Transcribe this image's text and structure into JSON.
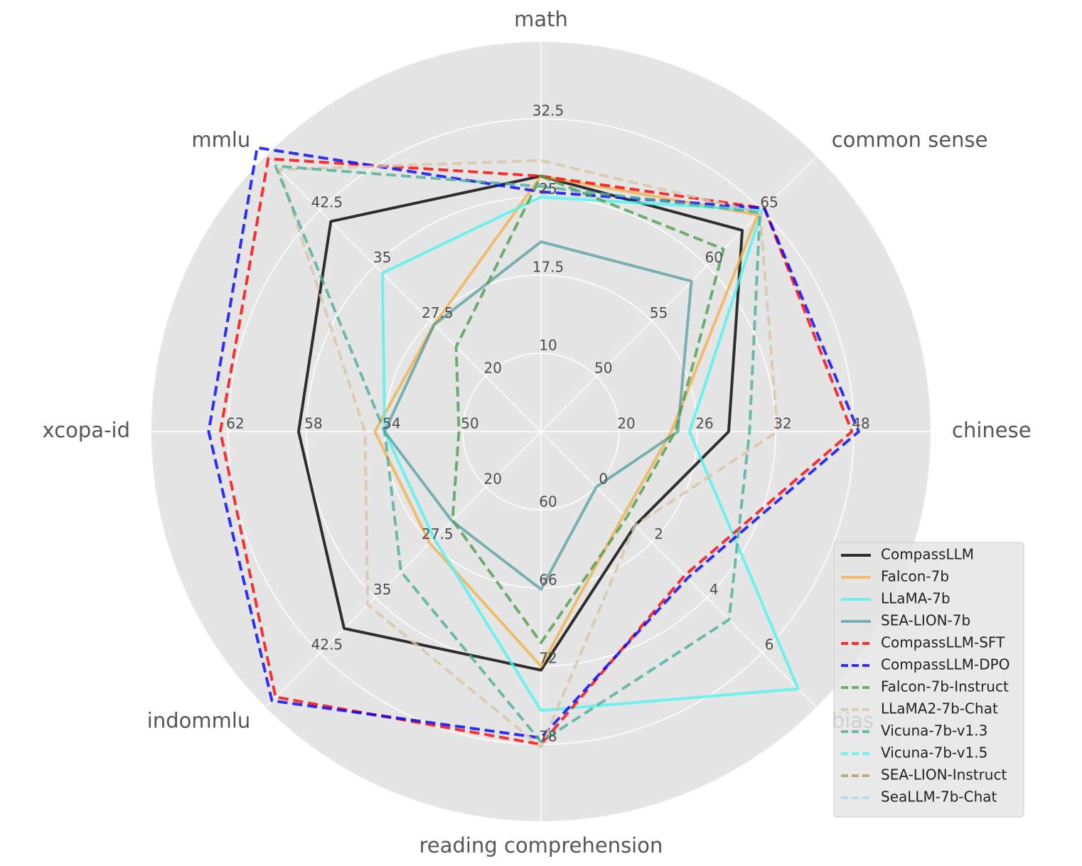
{
  "chart_data": {
    "type": "radar",
    "axes": [
      {
        "name": "math",
        "ticks": [
          "10",
          "17.5",
          "25",
          "32.5"
        ]
      },
      {
        "name": "common sense",
        "ticks": [
          "50",
          "55",
          "60",
          "65"
        ]
      },
      {
        "name": "chinese",
        "ticks": [
          "20",
          "26",
          "32",
          "48"
        ]
      },
      {
        "name": "bias",
        "ticks": [
          "0",
          "2",
          "4",
          "6"
        ]
      },
      {
        "name": "reading comprehension",
        "ticks": [
          "60",
          "66",
          "72",
          "78"
        ]
      },
      {
        "name": "indommlu",
        "ticks": [
          "20",
          "27.5",
          "35",
          "42.5"
        ]
      },
      {
        "name": "xcopa-id",
        "ticks": [
          "50",
          "54",
          "58",
          "62"
        ]
      },
      {
        "name": "mmlu",
        "ticks": [
          "20",
          "27.5",
          "35",
          "42.5"
        ]
      }
    ],
    "series": [
      {
        "name": "CompassLLM",
        "color": "#000000",
        "dash": false,
        "opacity": 0.8,
        "values": [
          27.0,
          63.2,
          28.4,
          1.4,
          72.3,
          39.2,
          58.4,
          41.0
        ]
      },
      {
        "name": "Falcon-7b",
        "color": "#f0b24f",
        "dash": false,
        "opacity": 0.8,
        "values": [
          27.0,
          64.6,
          24.0,
          1.0,
          72.0,
          27.6,
          54.5,
          27.0
        ]
      },
      {
        "name": "LLaMA-7b",
        "color": "#4ef4f0",
        "dash": false,
        "opacity": 0.8,
        "values": [
          25.0,
          65.0,
          25.4,
          7.3,
          75.4,
          27.0,
          54.0,
          34.0
        ]
      },
      {
        "name": "SEA-LION-7b",
        "color": "#2e8b8e",
        "dash": false,
        "opacity": 0.6,
        "values": [
          20.7,
          58.6,
          24.5,
          0.0,
          66.1,
          24.6,
          54.0,
          27.0
        ]
      },
      {
        "name": "CompassLLM-SFT",
        "color": "#ff0000",
        "dash": true,
        "opacity": 0.8,
        "values": [
          27.0,
          65.2,
          47.6,
          3.2,
          78.0,
          48.5,
          62.4,
          49.5
        ]
      },
      {
        "name": "CompassLLM-DPO",
        "color": "#0000ff",
        "dash": true,
        "opacity": 0.8,
        "values": [
          25.5,
          65.2,
          49.0,
          3.3,
          77.5,
          49.0,
          63.0,
          51.0
        ]
      },
      {
        "name": "Falcon-7b-Instruct",
        "color": "#4d9e4d",
        "dash": true,
        "opacity": 0.8,
        "values": [
          27.0,
          61.5,
          24.3,
          1.1,
          70.2,
          24.5,
          50.2,
          24.0
        ]
      },
      {
        "name": "LLaMA2-7b-Chat",
        "color": "#d9c4a6",
        "dash": true,
        "opacity": 0.8,
        "values": [
          28.5,
          64.8,
          32.4,
          1.4,
          78.2,
          36.0,
          55.0,
          48.0
        ]
      },
      {
        "name": "Vicuna-7b-v1.3",
        "color": "#4cae9a",
        "dash": true,
        "opacity": 0.8,
        "values": [
          26.0,
          64.8,
          30.0,
          4.8,
          77.8,
          31.5,
          54.0,
          48.5
        ]
      },
      {
        "name": "Vicuna-7b-v1.5",
        "color": "#4ef4f0",
        "dash": true,
        "opacity": 0.8,
        "values": [
          null,
          null,
          null,
          null,
          null,
          null,
          null,
          null
        ]
      },
      {
        "name": "SEA-LION-Instruct",
        "color": "#a8a35c",
        "dash": true,
        "opacity": 0.8,
        "values": [
          null,
          null,
          null,
          null,
          null,
          null,
          null,
          null
        ]
      },
      {
        "name": "SeaLLM-7b-Chat",
        "color": "#add8e6",
        "dash": true,
        "opacity": 0.8,
        "values": [
          null,
          null,
          null,
          null,
          null,
          null,
          null,
          null
        ]
      }
    ],
    "grid": true,
    "legend_position": "bottom-right"
  }
}
